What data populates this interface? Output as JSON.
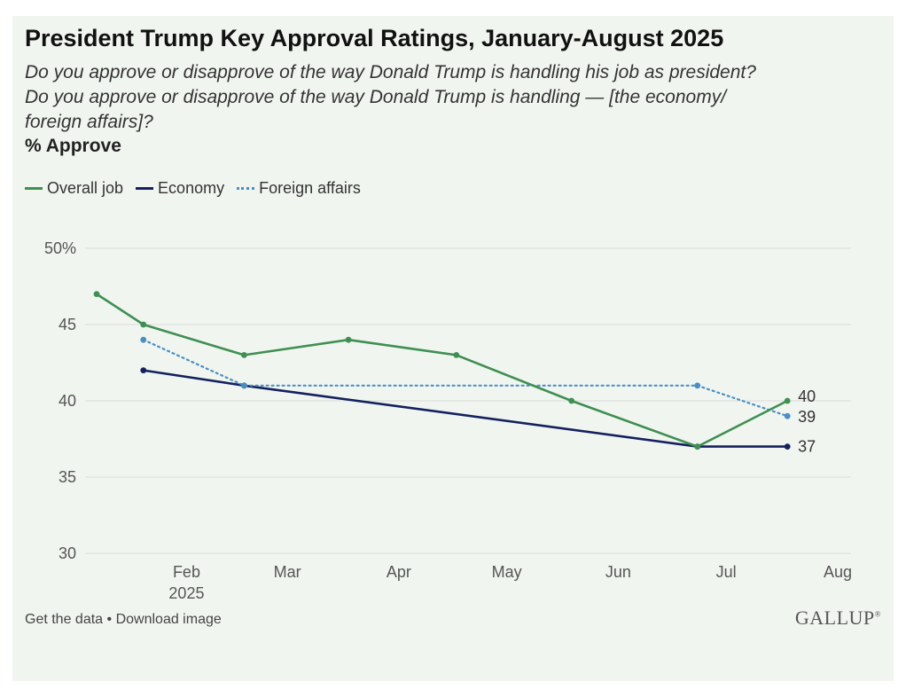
{
  "header": {
    "title": "President Trump Key Approval Ratings, January-August 2025",
    "subtitle_line1": "Do you approve or disapprove of the way Donald Trump is handling his job as president?",
    "subtitle_line2": "Do you approve or disapprove of the way Donald Trump is handling — [the economy/",
    "subtitle_line3": "foreign affairs]?",
    "unit_label": "% Approve"
  },
  "footer": {
    "get_data": "Get the data",
    "separator": "•",
    "download": "Download image",
    "brand": "GALLUP",
    "brand_mark": "®"
  },
  "colors": {
    "overall": "#3f8f52",
    "economy": "#14215e",
    "foreign": "#4a8fc4",
    "grid": "#d9dcd8",
    "axis_text": "#555555"
  },
  "chart_data": {
    "type": "line",
    "title": "President Trump Key Approval Ratings, January-August 2025",
    "ylabel": "% Approve",
    "xlabel": "",
    "grid": true,
    "legend_position": "top-left",
    "xlim": [
      "2025-01-21",
      "2025-08-15"
    ],
    "ylim": [
      30,
      50
    ],
    "y_ticks": [
      {
        "value": 30,
        "label": "30"
      },
      {
        "value": 35,
        "label": "35"
      },
      {
        "value": 40,
        "label": "40"
      },
      {
        "value": 45,
        "label": "45"
      },
      {
        "value": 50,
        "label": "50%"
      }
    ],
    "x_ticks": [
      {
        "date": "2025-02-15",
        "label": "Feb",
        "sublabel": "2025"
      },
      {
        "date": "2025-03-15",
        "label": "Mar",
        "sublabel": ""
      },
      {
        "date": "2025-04-15",
        "label": "Apr",
        "sublabel": ""
      },
      {
        "date": "2025-05-15",
        "label": "May",
        "sublabel": ""
      },
      {
        "date": "2025-06-15",
        "label": "Jun",
        "sublabel": ""
      },
      {
        "date": "2025-07-15",
        "label": "Jul",
        "sublabel": ""
      },
      {
        "date": "2025-08-15",
        "label": "Aug",
        "sublabel": ""
      }
    ],
    "series": [
      {
        "key": "overall",
        "name": "Overall job",
        "style": "solid",
        "end_label": "40",
        "points": [
          {
            "x": "2025-01-21",
            "y": 47
          },
          {
            "x": "2025-02-03",
            "y": 45
          },
          {
            "x": "2025-03-03",
            "y": 43
          },
          {
            "x": "2025-04-01",
            "y": 44
          },
          {
            "x": "2025-05-01",
            "y": 43
          },
          {
            "x": "2025-06-02",
            "y": 40
          },
          {
            "x": "2025-07-07",
            "y": 37
          },
          {
            "x": "2025-08-01",
            "y": 40
          }
        ]
      },
      {
        "key": "economy",
        "name": "Economy",
        "style": "solid",
        "end_label": "37",
        "points": [
          {
            "x": "2025-02-03",
            "y": 42
          },
          {
            "x": "2025-03-03",
            "y": 41
          },
          {
            "x": "2025-07-07",
            "y": 37
          },
          {
            "x": "2025-08-01",
            "y": 37
          }
        ]
      },
      {
        "key": "foreign",
        "name": "Foreign affairs",
        "style": "dotted",
        "end_label": "39",
        "points": [
          {
            "x": "2025-02-03",
            "y": 44
          },
          {
            "x": "2025-03-03",
            "y": 41
          },
          {
            "x": "2025-07-07",
            "y": 41
          },
          {
            "x": "2025-08-01",
            "y": 39
          }
        ]
      }
    ]
  }
}
